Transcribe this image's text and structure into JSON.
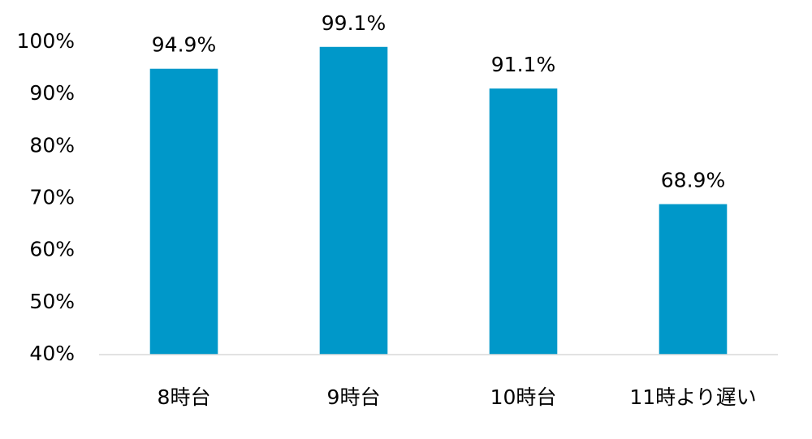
{
  "chart_data": {
    "type": "bar",
    "categories": [
      "8時台",
      "9時台",
      "10時台",
      "11時より遅い"
    ],
    "values": [
      94.9,
      99.1,
      91.1,
      68.9
    ],
    "value_labels": [
      "94.9%",
      "99.1%",
      "91.1%",
      "68.9%"
    ],
    "color": "#0098c9",
    "ylim": [
      40,
      100
    ],
    "yticks": [
      {
        "value": 40,
        "label": "40%"
      },
      {
        "value": 50,
        "label": "50%"
      },
      {
        "value": 60,
        "label": "60%"
      },
      {
        "value": 70,
        "label": "70%"
      },
      {
        "value": 80,
        "label": "80%"
      },
      {
        "value": 90,
        "label": "90%"
      },
      {
        "value": 100,
        "label": "100%"
      }
    ],
    "grid": false
  }
}
